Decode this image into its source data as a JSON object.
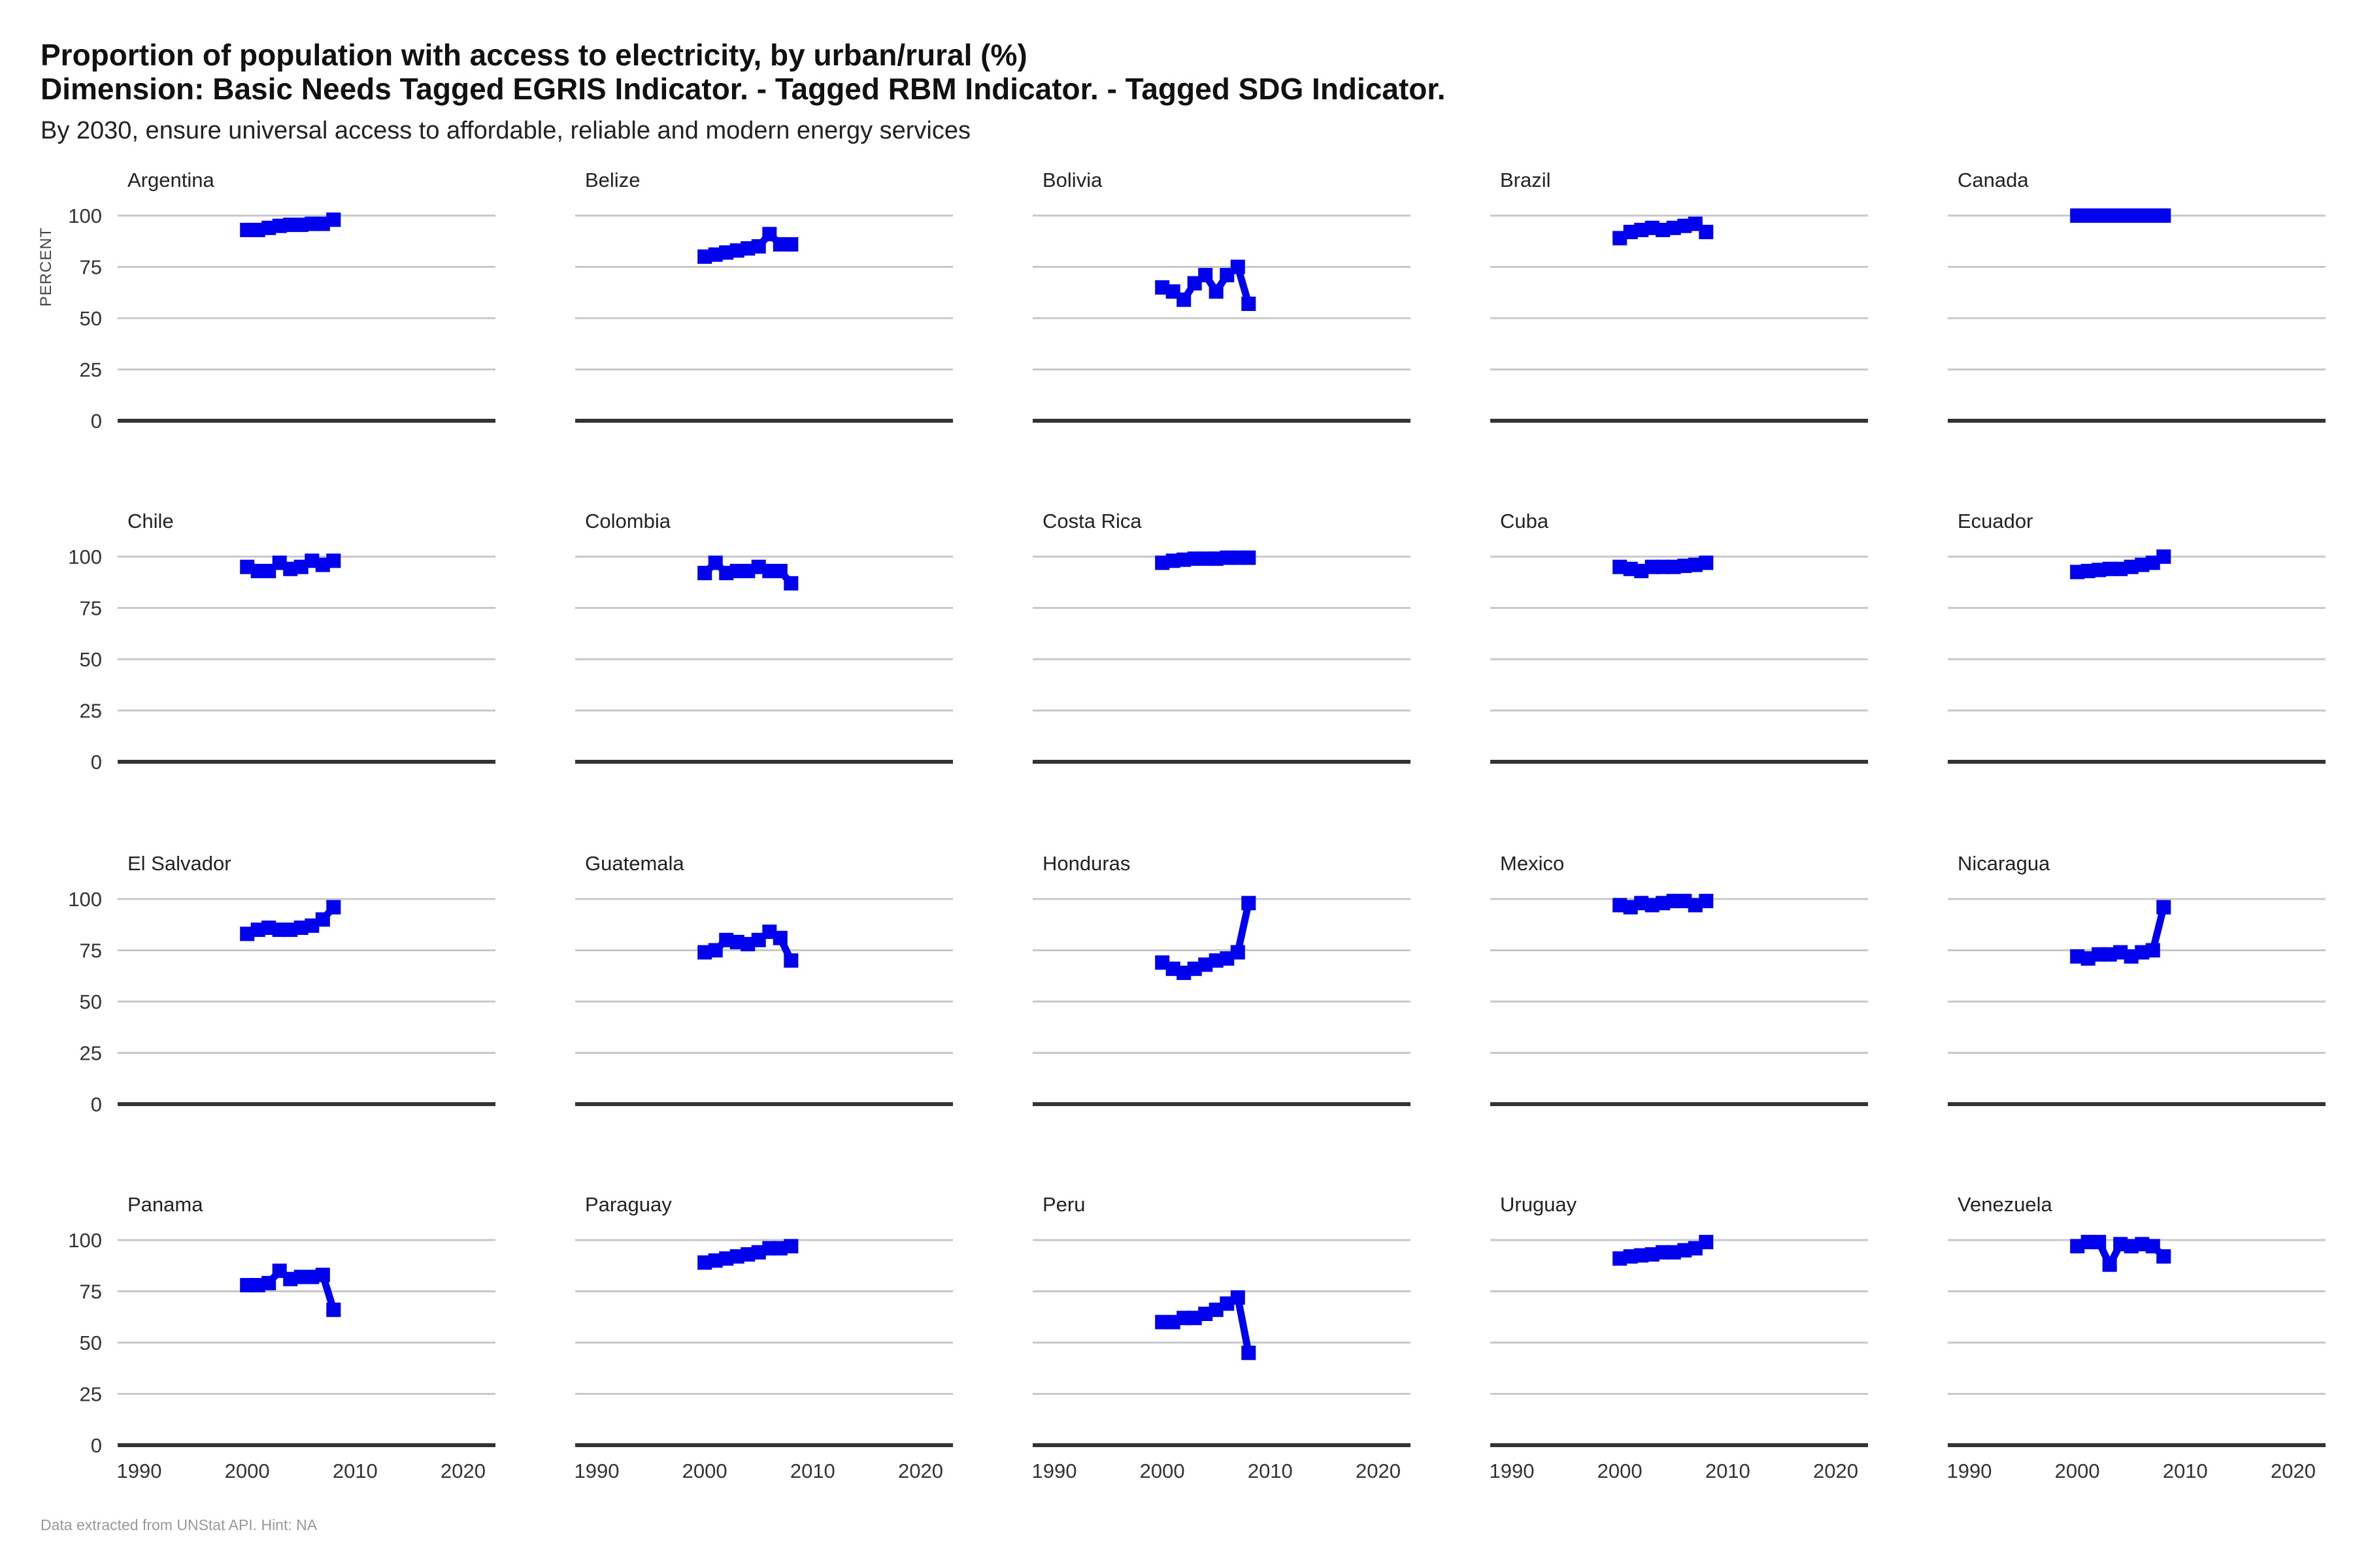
{
  "title_line1": "Proportion of population with access to electricity, by urban/rural (%)",
  "title_line2": "Dimension: Basic Needs Tagged EGRIS Indicator. - Tagged RBM  Indicator. - Tagged SDG Indicator.",
  "subtitle": "By 2030, ensure universal access to affordable, reliable and modern energy services",
  "caption": "Data extracted from UNStat API. Hint: NA",
  "chart_data": {
    "type": "line",
    "layout": "small-multiples",
    "xlim": [
      1988,
      2023
    ],
    "ylim": [
      0,
      100
    ],
    "x_ticks": [
      1990,
      2000,
      2010,
      2020
    ],
    "y_ticks": [
      0,
      25,
      50,
      75,
      100
    ],
    "ylabel": "PERCENT",
    "series_color": "#0000ee",
    "panels": [
      {
        "name": "Argentina",
        "x": [
          2000,
          2001,
          2002,
          2003,
          2004,
          2005,
          2006,
          2007,
          2008
        ],
        "values": [
          93,
          93,
          94,
          95,
          95.5,
          95.5,
          96,
          96,
          98
        ]
      },
      {
        "name": "Belize",
        "x": [
          2000,
          2001,
          2002,
          2003,
          2004,
          2005,
          2006,
          2007,
          2008
        ],
        "values": [
          80,
          81,
          82,
          83,
          84,
          85,
          91,
          86,
          86
        ]
      },
      {
        "name": "Bolivia",
        "x": [
          2000,
          2001,
          2002,
          2003,
          2004,
          2005,
          2006,
          2007,
          2008
        ],
        "values": [
          65,
          63,
          59,
          67,
          71,
          63,
          71,
          75,
          57
        ]
      },
      {
        "name": "Brazil",
        "x": [
          2000,
          2001,
          2002,
          2003,
          2004,
          2005,
          2006,
          2007,
          2008
        ],
        "values": [
          89,
          92,
          93,
          94,
          93,
          94,
          95,
          96,
          92
        ]
      },
      {
        "name": "Canada",
        "x": [
          2000,
          2001,
          2002,
          2003,
          2004,
          2005,
          2006,
          2007,
          2008
        ],
        "values": [
          100,
          100,
          100,
          100,
          100,
          100,
          100,
          100,
          100
        ]
      },
      {
        "name": "Chile",
        "x": [
          2000,
          2001,
          2002,
          2003,
          2004,
          2005,
          2006,
          2007,
          2008
        ],
        "values": [
          95,
          93,
          93,
          97,
          94,
          95,
          98,
          96,
          98
        ]
      },
      {
        "name": "Colombia",
        "x": [
          2000,
          2001,
          2002,
          2003,
          2004,
          2005,
          2006,
          2007,
          2008
        ],
        "values": [
          92,
          97,
          92,
          93,
          93,
          95,
          93,
          93,
          87
        ]
      },
      {
        "name": "Costa Rica",
        "x": [
          2000,
          2001,
          2002,
          2003,
          2004,
          2005,
          2006,
          2007,
          2008
        ],
        "values": [
          97,
          98,
          98.5,
          99,
          99,
          99,
          99.5,
          99.5,
          99.5
        ]
      },
      {
        "name": "Cuba",
        "x": [
          2000,
          2001,
          2002,
          2003,
          2004,
          2005,
          2006,
          2007,
          2008
        ],
        "values": [
          95,
          94,
          93,
          95,
          95,
          95,
          95.5,
          96,
          97
        ]
      },
      {
        "name": "Ecuador",
        "x": [
          2000,
          2001,
          2002,
          2003,
          2004,
          2005,
          2006,
          2007,
          2008
        ],
        "values": [
          92.5,
          93,
          93.5,
          94,
          94,
          95,
          96,
          97,
          100
        ]
      },
      {
        "name": "El Salvador",
        "x": [
          2000,
          2001,
          2002,
          2003,
          2004,
          2005,
          2006,
          2007,
          2008
        ],
        "values": [
          83,
          85,
          86,
          85,
          85,
          86,
          87,
          90,
          96
        ]
      },
      {
        "name": "Guatemala",
        "x": [
          2000,
          2001,
          2002,
          2003,
          2004,
          2005,
          2006,
          2007,
          2008
        ],
        "values": [
          74,
          75,
          80,
          79,
          78,
          80,
          84,
          81,
          70
        ]
      },
      {
        "name": "Honduras",
        "x": [
          2000,
          2001,
          2002,
          2003,
          2004,
          2005,
          2006,
          2007,
          2008
        ],
        "values": [
          69,
          66,
          64,
          66,
          68,
          70,
          71,
          74,
          98
        ]
      },
      {
        "name": "Mexico",
        "x": [
          2000,
          2001,
          2002,
          2003,
          2004,
          2005,
          2006,
          2007,
          2008
        ],
        "values": [
          97,
          96,
          98,
          97,
          98,
          99,
          99,
          97,
          99
        ]
      },
      {
        "name": "Nicaragua",
        "x": [
          2000,
          2001,
          2002,
          2003,
          2004,
          2005,
          2006,
          2007,
          2008
        ],
        "values": [
          72,
          71,
          73,
          73,
          74,
          72,
          74,
          75,
          96
        ]
      },
      {
        "name": "Panama",
        "x": [
          2000,
          2001,
          2002,
          2003,
          2004,
          2005,
          2006,
          2007,
          2008
        ],
        "values": [
          78,
          78,
          79,
          85,
          81,
          82,
          82,
          83,
          66
        ]
      },
      {
        "name": "Paraguay",
        "x": [
          2000,
          2001,
          2002,
          2003,
          2004,
          2005,
          2006,
          2007,
          2008
        ],
        "values": [
          89,
          90,
          91,
          92,
          93,
          94,
          96,
          96,
          97
        ]
      },
      {
        "name": "Peru",
        "x": [
          2000,
          2001,
          2002,
          2003,
          2004,
          2005,
          2006,
          2007,
          2008
        ],
        "values": [
          60,
          60,
          62,
          62,
          64,
          66,
          69,
          72,
          45
        ]
      },
      {
        "name": "Uruguay",
        "x": [
          2000,
          2001,
          2002,
          2003,
          2004,
          2005,
          2006,
          2007,
          2008
        ],
        "values": [
          91,
          92,
          92.5,
          93,
          94,
          94,
          95,
          96,
          99
        ]
      },
      {
        "name": "Venezuela",
        "x": [
          2000,
          2001,
          2002,
          2003,
          2004,
          2005,
          2006,
          2007,
          2008
        ],
        "values": [
          97,
          99,
          99,
          88,
          98,
          97,
          98,
          97,
          92
        ]
      }
    ]
  }
}
